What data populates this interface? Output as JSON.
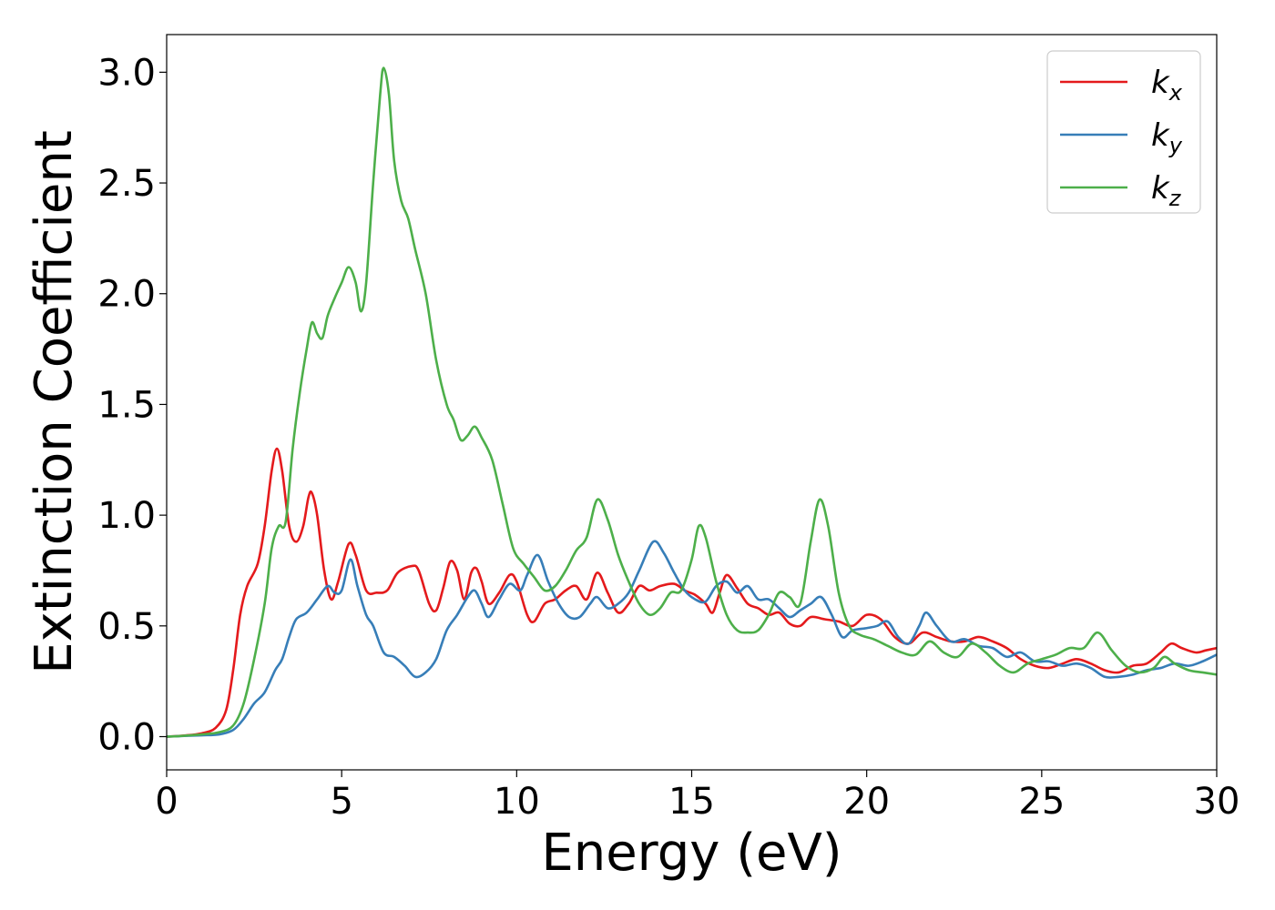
{
  "chart_data": {
    "type": "line",
    "xlabel": "Energy (eV)",
    "ylabel": "Extinction Coefficient",
    "xlim": [
      0,
      30
    ],
    "ylim": [
      -0.15,
      3.17
    ],
    "xticks": [
      0,
      5,
      10,
      15,
      20,
      25,
      30
    ],
    "yticks": [
      0.0,
      0.5,
      1.0,
      1.5,
      2.0,
      2.5,
      3.0
    ],
    "xtick_labels": [
      "0",
      "5",
      "10",
      "15",
      "20",
      "25",
      "30"
    ],
    "ytick_labels": [
      "0.0",
      "0.5",
      "1.0",
      "1.5",
      "2.0",
      "2.5",
      "3.0"
    ],
    "grid": false,
    "legend_position": "top-right",
    "series": [
      {
        "name": "k",
        "subscript": "x",
        "color": "#e41a1c",
        "points": [
          [
            0,
            0
          ],
          [
            0.5,
            0.005
          ],
          [
            1.0,
            0.015
          ],
          [
            1.4,
            0.04
          ],
          [
            1.7,
            0.12
          ],
          [
            1.9,
            0.3
          ],
          [
            2.1,
            0.55
          ],
          [
            2.3,
            0.68
          ],
          [
            2.6,
            0.78
          ],
          [
            2.8,
            0.95
          ],
          [
            3.0,
            1.2
          ],
          [
            3.15,
            1.3
          ],
          [
            3.3,
            1.2
          ],
          [
            3.5,
            0.95
          ],
          [
            3.7,
            0.88
          ],
          [
            3.9,
            0.95
          ],
          [
            4.05,
            1.08
          ],
          [
            4.15,
            1.1
          ],
          [
            4.3,
            1.0
          ],
          [
            4.5,
            0.75
          ],
          [
            4.7,
            0.62
          ],
          [
            4.9,
            0.7
          ],
          [
            5.2,
            0.87
          ],
          [
            5.4,
            0.82
          ],
          [
            5.7,
            0.66
          ],
          [
            6.0,
            0.65
          ],
          [
            6.3,
            0.66
          ],
          [
            6.6,
            0.74
          ],
          [
            7.0,
            0.77
          ],
          [
            7.2,
            0.75
          ],
          [
            7.5,
            0.6
          ],
          [
            7.7,
            0.57
          ],
          [
            7.9,
            0.67
          ],
          [
            8.1,
            0.79
          ],
          [
            8.3,
            0.75
          ],
          [
            8.5,
            0.62
          ],
          [
            8.7,
            0.74
          ],
          [
            8.85,
            0.76
          ],
          [
            9.0,
            0.7
          ],
          [
            9.2,
            0.6
          ],
          [
            9.5,
            0.65
          ],
          [
            9.8,
            0.73
          ],
          [
            10.0,
            0.7
          ],
          [
            10.3,
            0.55
          ],
          [
            10.5,
            0.52
          ],
          [
            10.8,
            0.6
          ],
          [
            11.1,
            0.62
          ],
          [
            11.4,
            0.66
          ],
          [
            11.7,
            0.68
          ],
          [
            12.0,
            0.62
          ],
          [
            12.3,
            0.74
          ],
          [
            12.6,
            0.65
          ],
          [
            12.9,
            0.56
          ],
          [
            13.2,
            0.6
          ],
          [
            13.5,
            0.68
          ],
          [
            13.8,
            0.66
          ],
          [
            14.1,
            0.68
          ],
          [
            14.5,
            0.69
          ],
          [
            14.8,
            0.66
          ],
          [
            15.1,
            0.64
          ],
          [
            15.4,
            0.6
          ],
          [
            15.6,
            0.56
          ],
          [
            15.8,
            0.65
          ],
          [
            16.0,
            0.73
          ],
          [
            16.3,
            0.67
          ],
          [
            16.6,
            0.6
          ],
          [
            16.9,
            0.58
          ],
          [
            17.2,
            0.55
          ],
          [
            17.5,
            0.56
          ],
          [
            17.8,
            0.51
          ],
          [
            18.1,
            0.5
          ],
          [
            18.4,
            0.54
          ],
          [
            18.8,
            0.53
          ],
          [
            19.2,
            0.52
          ],
          [
            19.6,
            0.5
          ],
          [
            20.0,
            0.55
          ],
          [
            20.4,
            0.53
          ],
          [
            20.8,
            0.45
          ],
          [
            21.2,
            0.42
          ],
          [
            21.6,
            0.47
          ],
          [
            22.0,
            0.45
          ],
          [
            22.4,
            0.43
          ],
          [
            22.8,
            0.43
          ],
          [
            23.2,
            0.45
          ],
          [
            23.6,
            0.43
          ],
          [
            24.0,
            0.4
          ],
          [
            24.4,
            0.35
          ],
          [
            24.8,
            0.32
          ],
          [
            25.2,
            0.31
          ],
          [
            25.6,
            0.33
          ],
          [
            26.0,
            0.35
          ],
          [
            26.4,
            0.33
          ],
          [
            26.8,
            0.3
          ],
          [
            27.2,
            0.29
          ],
          [
            27.6,
            0.32
          ],
          [
            28.0,
            0.33
          ],
          [
            28.4,
            0.38
          ],
          [
            28.7,
            0.42
          ],
          [
            29.0,
            0.4
          ],
          [
            29.4,
            0.38
          ],
          [
            29.7,
            0.39
          ],
          [
            30.0,
            0.4
          ]
        ]
      },
      {
        "name": "k",
        "subscript": "y",
        "color": "#377eb8",
        "points": [
          [
            0,
            0
          ],
          [
            0.5,
            0.003
          ],
          [
            1.0,
            0.006
          ],
          [
            1.5,
            0.01
          ],
          [
            1.9,
            0.03
          ],
          [
            2.2,
            0.08
          ],
          [
            2.5,
            0.15
          ],
          [
            2.8,
            0.2
          ],
          [
            3.1,
            0.3
          ],
          [
            3.3,
            0.35
          ],
          [
            3.5,
            0.45
          ],
          [
            3.7,
            0.53
          ],
          [
            4.0,
            0.56
          ],
          [
            4.3,
            0.62
          ],
          [
            4.6,
            0.68
          ],
          [
            4.8,
            0.65
          ],
          [
            5.0,
            0.66
          ],
          [
            5.25,
            0.8
          ],
          [
            5.45,
            0.68
          ],
          [
            5.7,
            0.55
          ],
          [
            5.9,
            0.5
          ],
          [
            6.2,
            0.38
          ],
          [
            6.5,
            0.36
          ],
          [
            6.8,
            0.32
          ],
          [
            7.1,
            0.27
          ],
          [
            7.4,
            0.29
          ],
          [
            7.7,
            0.35
          ],
          [
            8.0,
            0.48
          ],
          [
            8.3,
            0.55
          ],
          [
            8.6,
            0.63
          ],
          [
            8.8,
            0.66
          ],
          [
            9.0,
            0.6
          ],
          [
            9.2,
            0.54
          ],
          [
            9.5,
            0.62
          ],
          [
            9.8,
            0.69
          ],
          [
            10.1,
            0.66
          ],
          [
            10.3,
            0.73
          ],
          [
            10.6,
            0.82
          ],
          [
            10.9,
            0.7
          ],
          [
            11.2,
            0.6
          ],
          [
            11.5,
            0.54
          ],
          [
            11.8,
            0.54
          ],
          [
            12.1,
            0.6
          ],
          [
            12.3,
            0.63
          ],
          [
            12.6,
            0.58
          ],
          [
            12.9,
            0.6
          ],
          [
            13.2,
            0.65
          ],
          [
            13.5,
            0.75
          ],
          [
            13.9,
            0.88
          ],
          [
            14.2,
            0.83
          ],
          [
            14.5,
            0.74
          ],
          [
            14.8,
            0.66
          ],
          [
            15.1,
            0.62
          ],
          [
            15.4,
            0.61
          ],
          [
            15.7,
            0.68
          ],
          [
            16.0,
            0.7
          ],
          [
            16.3,
            0.65
          ],
          [
            16.6,
            0.68
          ],
          [
            16.9,
            0.62
          ],
          [
            17.2,
            0.62
          ],
          [
            17.5,
            0.58
          ],
          [
            17.8,
            0.54
          ],
          [
            18.1,
            0.57
          ],
          [
            18.4,
            0.6
          ],
          [
            18.7,
            0.63
          ],
          [
            19.0,
            0.55
          ],
          [
            19.3,
            0.45
          ],
          [
            19.6,
            0.48
          ],
          [
            20.0,
            0.49
          ],
          [
            20.3,
            0.5
          ],
          [
            20.6,
            0.52
          ],
          [
            20.9,
            0.45
          ],
          [
            21.2,
            0.42
          ],
          [
            21.5,
            0.5
          ],
          [
            21.7,
            0.56
          ],
          [
            22.0,
            0.5
          ],
          [
            22.4,
            0.43
          ],
          [
            22.8,
            0.44
          ],
          [
            23.2,
            0.41
          ],
          [
            23.6,
            0.4
          ],
          [
            24.0,
            0.36
          ],
          [
            24.4,
            0.38
          ],
          [
            24.8,
            0.34
          ],
          [
            25.2,
            0.34
          ],
          [
            25.6,
            0.32
          ],
          [
            26.0,
            0.33
          ],
          [
            26.4,
            0.31
          ],
          [
            26.8,
            0.27
          ],
          [
            27.2,
            0.27
          ],
          [
            27.6,
            0.28
          ],
          [
            28.0,
            0.3
          ],
          [
            28.4,
            0.31
          ],
          [
            28.8,
            0.33
          ],
          [
            29.2,
            0.32
          ],
          [
            29.6,
            0.34
          ],
          [
            30.0,
            0.37
          ]
        ]
      },
      {
        "name": "k",
        "subscript": "z",
        "color": "#4daf4a",
        "points": [
          [
            0,
            0
          ],
          [
            0.5,
            0.004
          ],
          [
            1.0,
            0.01
          ],
          [
            1.5,
            0.02
          ],
          [
            1.9,
            0.05
          ],
          [
            2.2,
            0.15
          ],
          [
            2.5,
            0.35
          ],
          [
            2.8,
            0.6
          ],
          [
            3.0,
            0.85
          ],
          [
            3.2,
            0.95
          ],
          [
            3.4,
            0.97
          ],
          [
            3.6,
            1.3
          ],
          [
            3.8,
            1.55
          ],
          [
            4.0,
            1.75
          ],
          [
            4.15,
            1.87
          ],
          [
            4.3,
            1.82
          ],
          [
            4.45,
            1.8
          ],
          [
            4.6,
            1.9
          ],
          [
            4.8,
            1.98
          ],
          [
            5.0,
            2.05
          ],
          [
            5.2,
            2.12
          ],
          [
            5.4,
            2.05
          ],
          [
            5.55,
            1.92
          ],
          [
            5.7,
            2.05
          ],
          [
            5.9,
            2.5
          ],
          [
            6.1,
            2.9
          ],
          [
            6.2,
            3.02
          ],
          [
            6.35,
            2.9
          ],
          [
            6.5,
            2.6
          ],
          [
            6.7,
            2.42
          ],
          [
            6.9,
            2.34
          ],
          [
            7.1,
            2.2
          ],
          [
            7.4,
            2.0
          ],
          [
            7.7,
            1.7
          ],
          [
            8.0,
            1.5
          ],
          [
            8.2,
            1.43
          ],
          [
            8.4,
            1.34
          ],
          [
            8.6,
            1.36
          ],
          [
            8.8,
            1.4
          ],
          [
            9.0,
            1.35
          ],
          [
            9.3,
            1.25
          ],
          [
            9.6,
            1.05
          ],
          [
            9.9,
            0.85
          ],
          [
            10.2,
            0.78
          ],
          [
            10.5,
            0.72
          ],
          [
            10.8,
            0.66
          ],
          [
            11.1,
            0.68
          ],
          [
            11.4,
            0.75
          ],
          [
            11.7,
            0.84
          ],
          [
            12.0,
            0.9
          ],
          [
            12.3,
            1.07
          ],
          [
            12.6,
            0.98
          ],
          [
            12.9,
            0.82
          ],
          [
            13.2,
            0.7
          ],
          [
            13.5,
            0.6
          ],
          [
            13.8,
            0.55
          ],
          [
            14.1,
            0.58
          ],
          [
            14.4,
            0.65
          ],
          [
            14.7,
            0.66
          ],
          [
            15.0,
            0.8
          ],
          [
            15.2,
            0.95
          ],
          [
            15.4,
            0.9
          ],
          [
            15.7,
            0.7
          ],
          [
            16.0,
            0.55
          ],
          [
            16.3,
            0.48
          ],
          [
            16.6,
            0.47
          ],
          [
            16.9,
            0.48
          ],
          [
            17.2,
            0.55
          ],
          [
            17.5,
            0.65
          ],
          [
            17.8,
            0.63
          ],
          [
            18.1,
            0.6
          ],
          [
            18.4,
            0.88
          ],
          [
            18.65,
            1.07
          ],
          [
            18.9,
            0.95
          ],
          [
            19.2,
            0.65
          ],
          [
            19.5,
            0.5
          ],
          [
            19.8,
            0.46
          ],
          [
            20.2,
            0.44
          ],
          [
            20.6,
            0.41
          ],
          [
            21.0,
            0.38
          ],
          [
            21.4,
            0.37
          ],
          [
            21.8,
            0.43
          ],
          [
            22.2,
            0.38
          ],
          [
            22.6,
            0.36
          ],
          [
            23.0,
            0.42
          ],
          [
            23.4,
            0.38
          ],
          [
            23.8,
            0.32
          ],
          [
            24.2,
            0.29
          ],
          [
            24.6,
            0.33
          ],
          [
            25.0,
            0.35
          ],
          [
            25.4,
            0.37
          ],
          [
            25.8,
            0.4
          ],
          [
            26.2,
            0.4
          ],
          [
            26.6,
            0.47
          ],
          [
            27.0,
            0.39
          ],
          [
            27.4,
            0.32
          ],
          [
            27.8,
            0.29
          ],
          [
            28.2,
            0.31
          ],
          [
            28.5,
            0.36
          ],
          [
            28.8,
            0.33
          ],
          [
            29.2,
            0.3
          ],
          [
            29.6,
            0.29
          ],
          [
            30.0,
            0.28
          ]
        ]
      }
    ]
  }
}
